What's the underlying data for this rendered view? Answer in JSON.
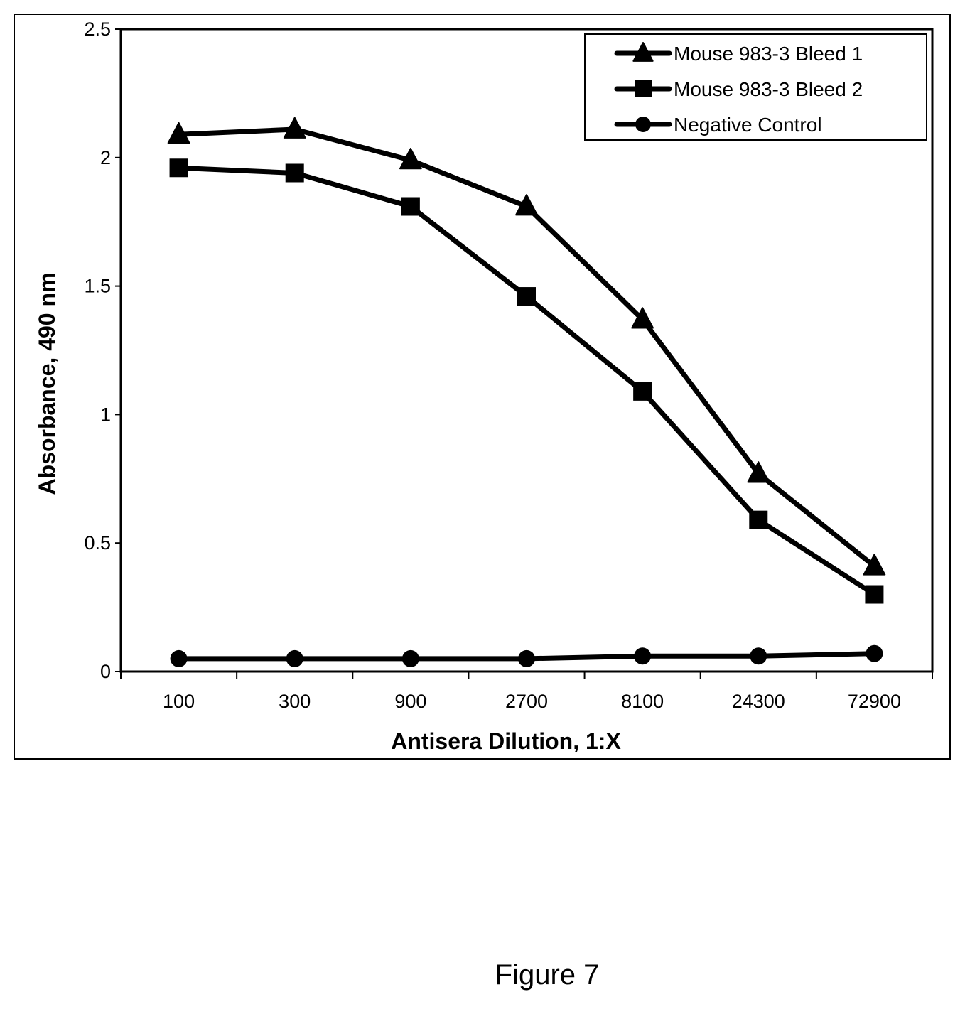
{
  "figure": {
    "caption": "Figure 7"
  },
  "chart_data": {
    "type": "line",
    "xlabel": "Antisera Dilution, 1:X",
    "ylabel": "Absorbance, 490 nm",
    "categories": [
      "100",
      "300",
      "900",
      "2700",
      "8100",
      "24300",
      "72900"
    ],
    "ylim": [
      0,
      2.5
    ],
    "yticks": [
      "0",
      "0.5",
      "1",
      "1.5",
      "2",
      "2.5"
    ],
    "grid": false,
    "legend_position": "top-right",
    "series": [
      {
        "name": "Mouse 983-3 Bleed 1",
        "marker": "triangle",
        "values": [
          2.09,
          2.11,
          1.99,
          1.81,
          1.37,
          0.77,
          0.41
        ]
      },
      {
        "name": "Mouse 983-3 Bleed 2",
        "marker": "square",
        "values": [
          1.96,
          1.94,
          1.81,
          1.46,
          1.09,
          0.59,
          0.3
        ]
      },
      {
        "name": "Negative Control",
        "marker": "circle",
        "values": [
          0.05,
          0.05,
          0.05,
          0.05,
          0.06,
          0.06,
          0.07
        ]
      }
    ],
    "colors": {
      "line": "#000000",
      "background": "#ffffff"
    }
  }
}
